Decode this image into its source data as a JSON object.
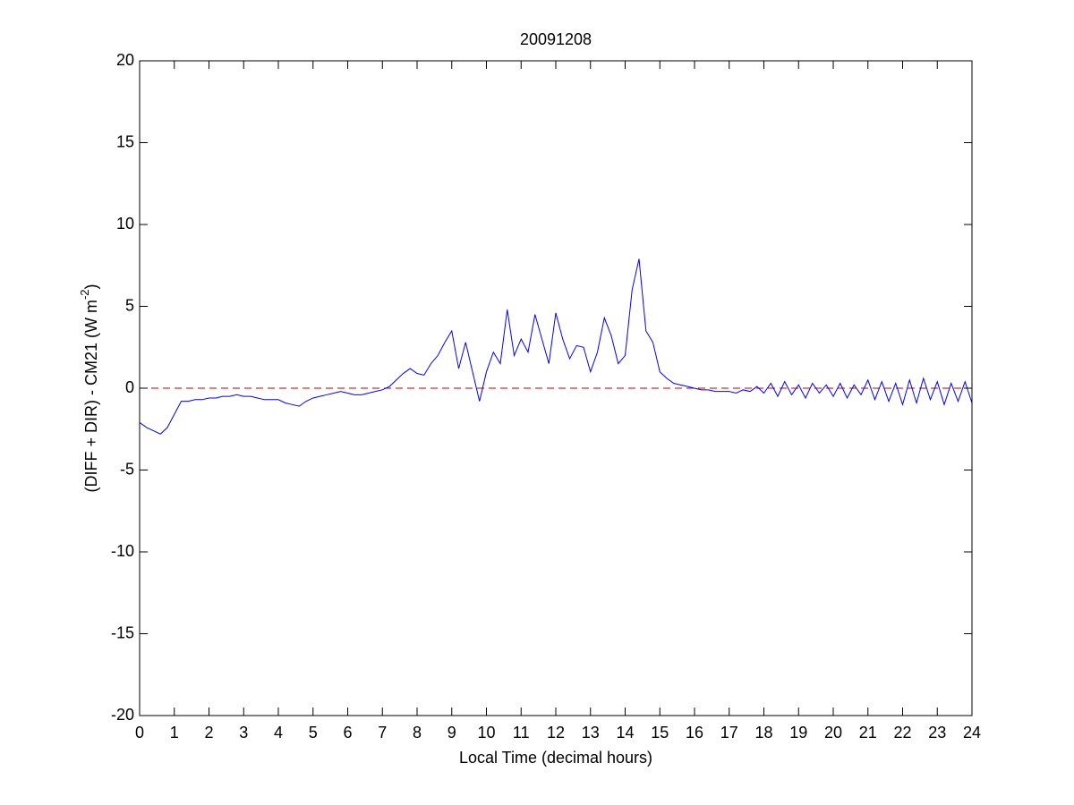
{
  "chart_data": {
    "type": "line",
    "title": "20091208",
    "xlabel": "Local Time (decimal hours)",
    "ylabel": {
      "text": "(DIFF + DIR) - CM21 (W m",
      "sup": "-2",
      "end": ")"
    },
    "xlim": [
      0,
      24
    ],
    "ylim": [
      -20,
      20
    ],
    "xticks": [
      0,
      1,
      2,
      3,
      4,
      5,
      6,
      7,
      8,
      9,
      10,
      11,
      12,
      13,
      14,
      15,
      16,
      17,
      18,
      19,
      20,
      21,
      22,
      23,
      24
    ],
    "yticks": [
      -20,
      -15,
      -10,
      -5,
      0,
      5,
      10,
      15,
      20
    ],
    "reference_line": {
      "y": 0,
      "color": "#c00000",
      "style": "dashed"
    },
    "series": [
      {
        "color": "#0000ff",
        "x": [
          0,
          0.2,
          0.4,
          0.6,
          0.8,
          1,
          1.2,
          1.4,
          1.6,
          1.8,
          2,
          2.2,
          2.4,
          2.6,
          2.8,
          3,
          3.2,
          3.4,
          3.6,
          3.8,
          4,
          4.2,
          4.4,
          4.6,
          4.8,
          5,
          5.2,
          5.4,
          5.6,
          5.8,
          6,
          6.2,
          6.4,
          6.6,
          6.8,
          7,
          7.2,
          7.4,
          7.6,
          7.8,
          8,
          8.2,
          8.4,
          8.6,
          8.8,
          9,
          9.2,
          9.4,
          9.6,
          9.8,
          10,
          10.2,
          10.4,
          10.6,
          10.8,
          11,
          11.2,
          11.4,
          11.6,
          11.8,
          12,
          12.2,
          12.4,
          12.6,
          12.8,
          13,
          13.2,
          13.4,
          13.6,
          13.8,
          14,
          14.2,
          14.4,
          14.6,
          14.8,
          15,
          15.2,
          15.4,
          15.6,
          15.8,
          16,
          16.2,
          16.4,
          16.6,
          16.8,
          17,
          17.2,
          17.4,
          17.6,
          17.8,
          18,
          18.2,
          18.4,
          18.6,
          18.8,
          19,
          19.2,
          19.4,
          19.6,
          19.8,
          20,
          20.2,
          20.4,
          20.6,
          20.8,
          21,
          21.2,
          21.4,
          21.6,
          21.8,
          22,
          22.2,
          22.4,
          22.6,
          22.8,
          23,
          23.2,
          23.4,
          23.6,
          23.8,
          24
        ],
        "values": [
          -2.1,
          -2.4,
          -2.6,
          -2.8,
          -2.4,
          -1.6,
          -0.8,
          -0.8,
          -0.7,
          -0.7,
          -0.6,
          -0.6,
          -0.5,
          -0.5,
          -0.4,
          -0.5,
          -0.5,
          -0.6,
          -0.7,
          -0.7,
          -0.7,
          -0.9,
          -1.0,
          -1.1,
          -0.8,
          -0.6,
          -0.5,
          -0.4,
          -0.3,
          -0.2,
          -0.3,
          -0.4,
          -0.4,
          -0.3,
          -0.2,
          -0.1,
          0.1,
          0.5,
          0.9,
          1.2,
          0.9,
          0.8,
          1.5,
          2.0,
          2.8,
          3.5,
          1.2,
          2.8,
          1.0,
          -0.8,
          1.0,
          2.2,
          1.5,
          4.8,
          2.0,
          3.0,
          2.2,
          4.5,
          3.0,
          1.5,
          4.6,
          3.0,
          1.8,
          2.6,
          2.5,
          1.0,
          2.2,
          4.3,
          3.2,
          1.5,
          2.0,
          6.0,
          7.9,
          3.5,
          2.8,
          1.0,
          0.6,
          0.3,
          0.2,
          0.1,
          0.0,
          -0.1,
          -0.1,
          -0.2,
          -0.2,
          -0.2,
          -0.3,
          -0.1,
          -0.2,
          0.1,
          -0.3,
          0.3,
          -0.5,
          0.4,
          -0.4,
          0.2,
          -0.6,
          0.3,
          -0.3,
          0.2,
          -0.5,
          0.3,
          -0.6,
          0.2,
          -0.4,
          0.5,
          -0.7,
          0.4,
          -0.8,
          0.3,
          -1.0,
          0.5,
          -0.9,
          0.6,
          -0.7,
          0.4,
          -1.0,
          0.3,
          -0.8,
          0.4,
          -0.9
        ]
      }
    ]
  }
}
